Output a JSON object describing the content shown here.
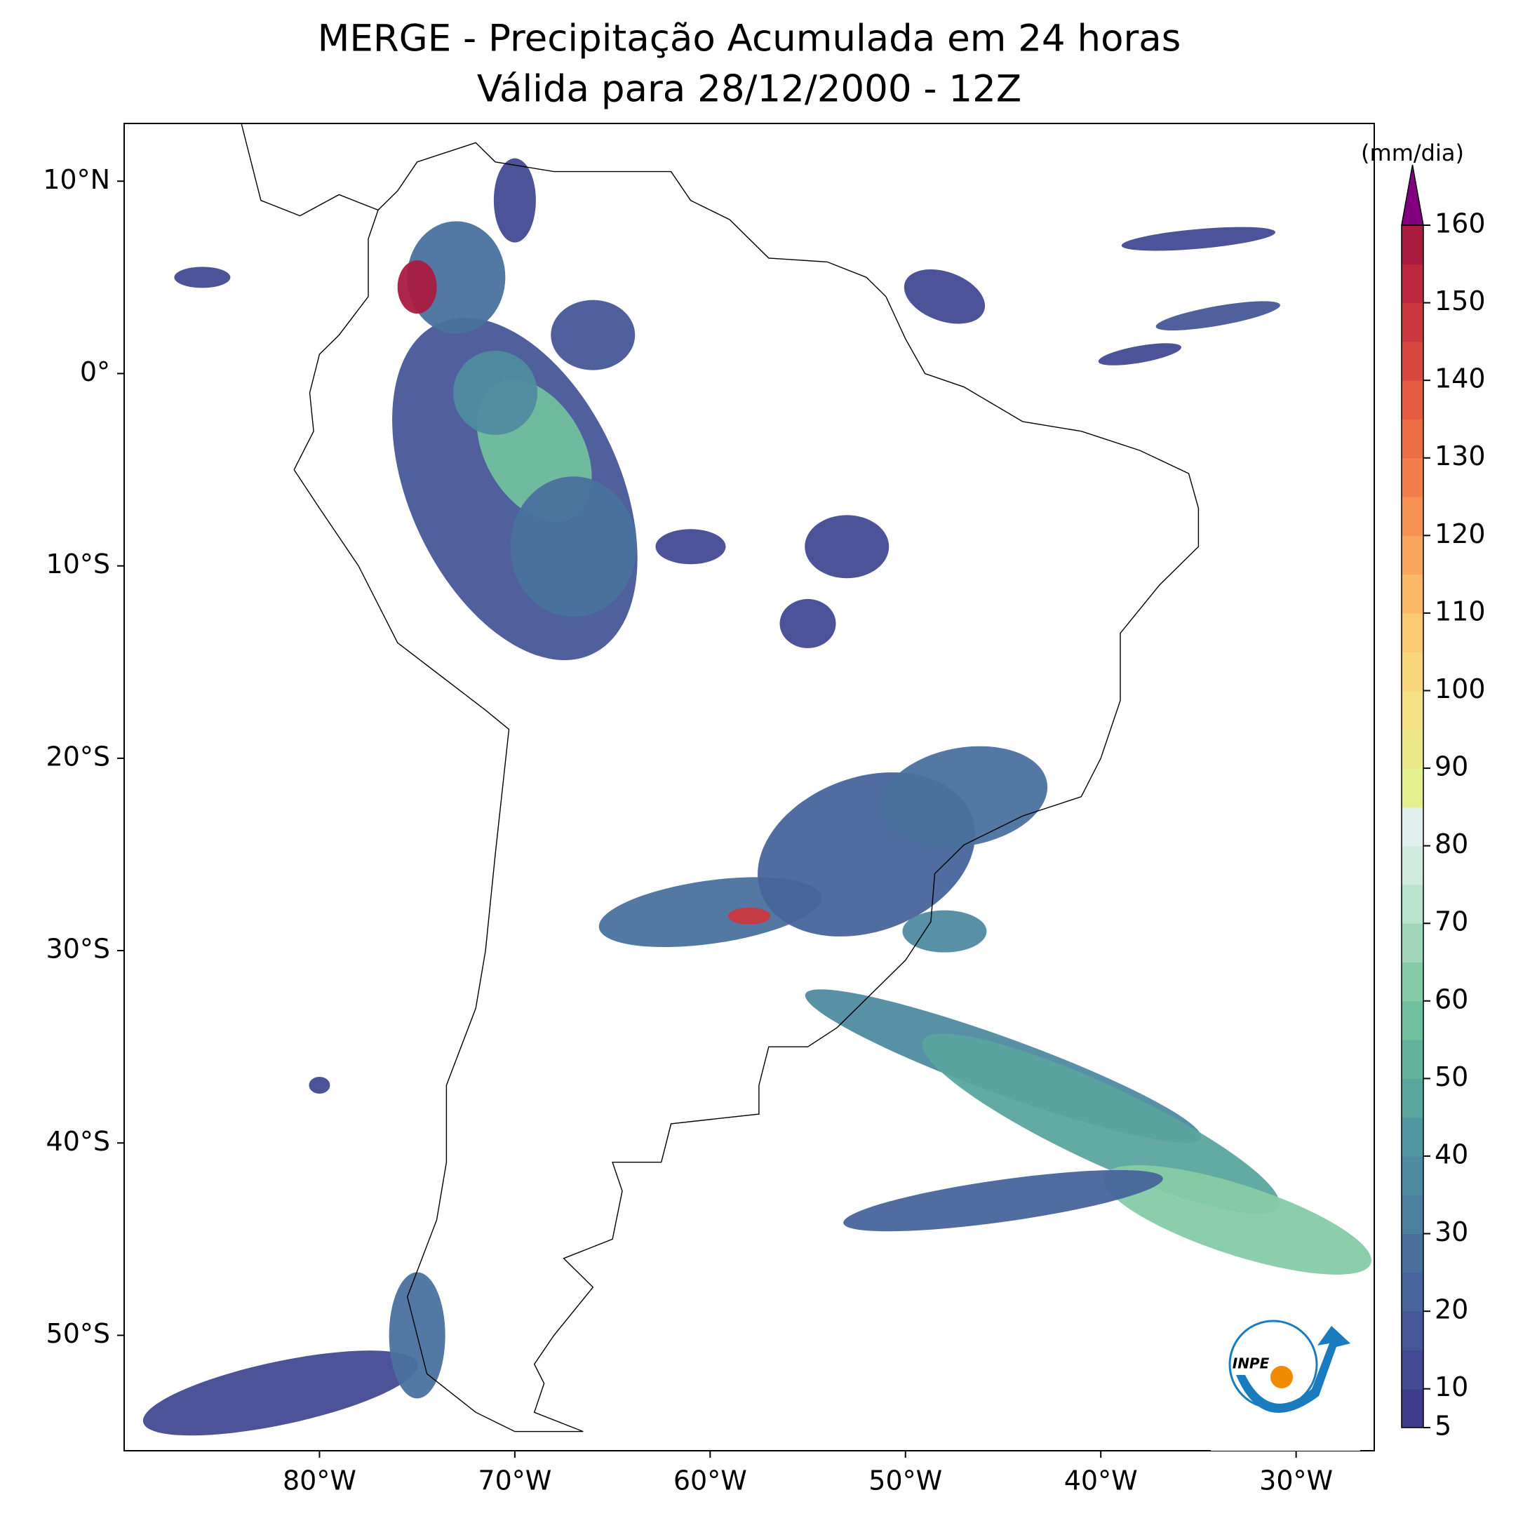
{
  "title": "MERGE - Precipitação Acumulada em 24 horas",
  "subtitle": "Válida para 28/12/2000 - 12Z",
  "map": {
    "xlim": [
      -90,
      -26
    ],
    "ylim": [
      -56,
      13
    ],
    "xticks": [
      {
        "value": -80,
        "label": "80°W"
      },
      {
        "value": -70,
        "label": "70°W"
      },
      {
        "value": -60,
        "label": "60°W"
      },
      {
        "value": -50,
        "label": "50°W"
      },
      {
        "value": -40,
        "label": "40°W"
      },
      {
        "value": -30,
        "label": "30°W"
      }
    ],
    "yticks": [
      {
        "value": 10,
        "label": "10°N"
      },
      {
        "value": 0,
        "label": "0°"
      },
      {
        "value": -10,
        "label": "10°S"
      },
      {
        "value": -20,
        "label": "20°S"
      },
      {
        "value": -30,
        "label": "30°S"
      },
      {
        "value": -40,
        "label": "40°S"
      },
      {
        "value": -50,
        "label": "50°S"
      }
    ]
  },
  "colorbar": {
    "label": "(mm/dia)",
    "lim": [
      5,
      160
    ],
    "ticks": [
      5,
      10,
      20,
      30,
      40,
      50,
      60,
      70,
      80,
      90,
      100,
      110,
      120,
      130,
      140,
      150,
      160
    ],
    "colors": [
      "#3e3d8c",
      "#434a93",
      "#465797",
      "#48649b",
      "#4a719e",
      "#4c7e9f",
      "#4f8ba0",
      "#5398a0",
      "#5aa59e",
      "#63b29c",
      "#72bfa0",
      "#86cba8",
      "#9fd6b8",
      "#bae2cc",
      "#cfeadf",
      "#dff0ec",
      "#e4ef8e",
      "#ede98a",
      "#f4e184",
      "#f9d67a",
      "#fbc96f",
      "#fbb865",
      "#f9a55c",
      "#f69253",
      "#f27f4b",
      "#ec6c45",
      "#e45a42",
      "#d94840",
      "#cc373f",
      "#bd283f",
      "#aa1b40"
    ],
    "extend_color": "#800080"
  },
  "logo": {
    "text": "INPE"
  }
}
